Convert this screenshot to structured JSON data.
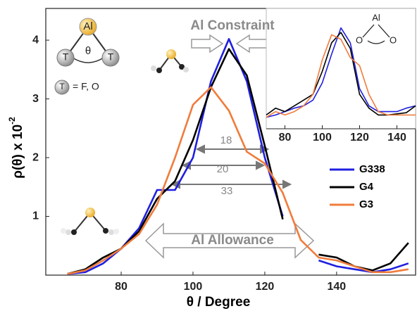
{
  "chart_data": [
    {
      "type": "line",
      "x_label": "θ / Degree",
      "y_label": "ρ(θ) x 10",
      "y_label_superscript": "-2",
      "x": [
        65,
        70,
        75,
        80,
        85,
        90,
        95,
        100,
        105,
        110,
        115,
        120,
        125,
        130,
        135,
        140,
        145,
        150,
        155,
        160
      ],
      "series": [
        {
          "name": "G338",
          "color": "#1f1fe0",
          "values": [
            0.02,
            0.05,
            0.2,
            0.45,
            0.8,
            1.45,
            1.45,
            2.0,
            3.3,
            4.02,
            3.3,
            2.0,
            1.0,
            null,
            0.25,
            0.15,
            0.1,
            0.05,
            0.1,
            0.2
          ]
        },
        {
          "name": "G4",
          "color": "#000000",
          "values": [
            0.02,
            0.1,
            0.3,
            0.45,
            0.75,
            1.3,
            1.6,
            2.3,
            3.2,
            3.85,
            3.4,
            2.2,
            0.95,
            null,
            0.35,
            0.3,
            0.15,
            0.08,
            0.2,
            0.55
          ]
        },
        {
          "name": "G3",
          "color": "#f07c3c",
          "values": [
            0.02,
            0.08,
            0.25,
            0.45,
            0.7,
            1.2,
            2.0,
            2.9,
            3.2,
            2.8,
            2.1,
            1.9,
            1.4,
            0.6,
            0.3,
            0.25,
            0.15,
            0.05,
            0.05,
            0.1
          ]
        }
      ],
      "xlim": [
        59,
        162
      ],
      "xticks": [
        80,
        100,
        120,
        140
      ],
      "ylim": [
        0,
        4.54
      ],
      "yticks": [
        1,
        2,
        3,
        4
      ],
      "annotations": [
        "Al  Constraint",
        "Al  Allowance",
        "18",
        "20",
        "33",
        "Al",
        "θ",
        "T",
        "T",
        "T",
        "= F, O"
      ]
    },
    {
      "type": "line",
      "x": [
        70,
        75,
        80,
        85,
        90,
        95,
        100,
        105,
        110,
        115,
        120,
        125,
        130,
        135,
        140,
        145,
        150
      ],
      "series": [
        {
          "color": "#1f1fe0",
          "values": [
            0.1,
            0.12,
            0.15,
            0.18,
            0.2,
            0.25,
            0.4,
            0.65,
            0.88,
            0.75,
            0.35,
            0.2,
            0.15,
            0.15,
            0.15,
            0.18,
            0.2
          ]
        },
        {
          "color": "#000000",
          "values": [
            0.12,
            0.18,
            0.15,
            0.2,
            0.25,
            0.3,
            0.5,
            0.75,
            0.84,
            0.7,
            0.3,
            0.18,
            0.12,
            0.12,
            0.13,
            0.14,
            0.2
          ]
        },
        {
          "color": "#f07c3c",
          "values": [
            0.1,
            0.15,
            0.12,
            0.15,
            0.2,
            0.3,
            0.6,
            0.82,
            0.78,
            0.62,
            0.55,
            0.3,
            0.15,
            0.12,
            0.12,
            0.12,
            0.12
          ]
        }
      ],
      "xlim": [
        70,
        150
      ],
      "xticks": [
        80,
        100,
        120,
        140
      ],
      "ylim": [
        0,
        1
      ],
      "annotations": [
        "Al",
        "O",
        "O"
      ]
    }
  ]
}
